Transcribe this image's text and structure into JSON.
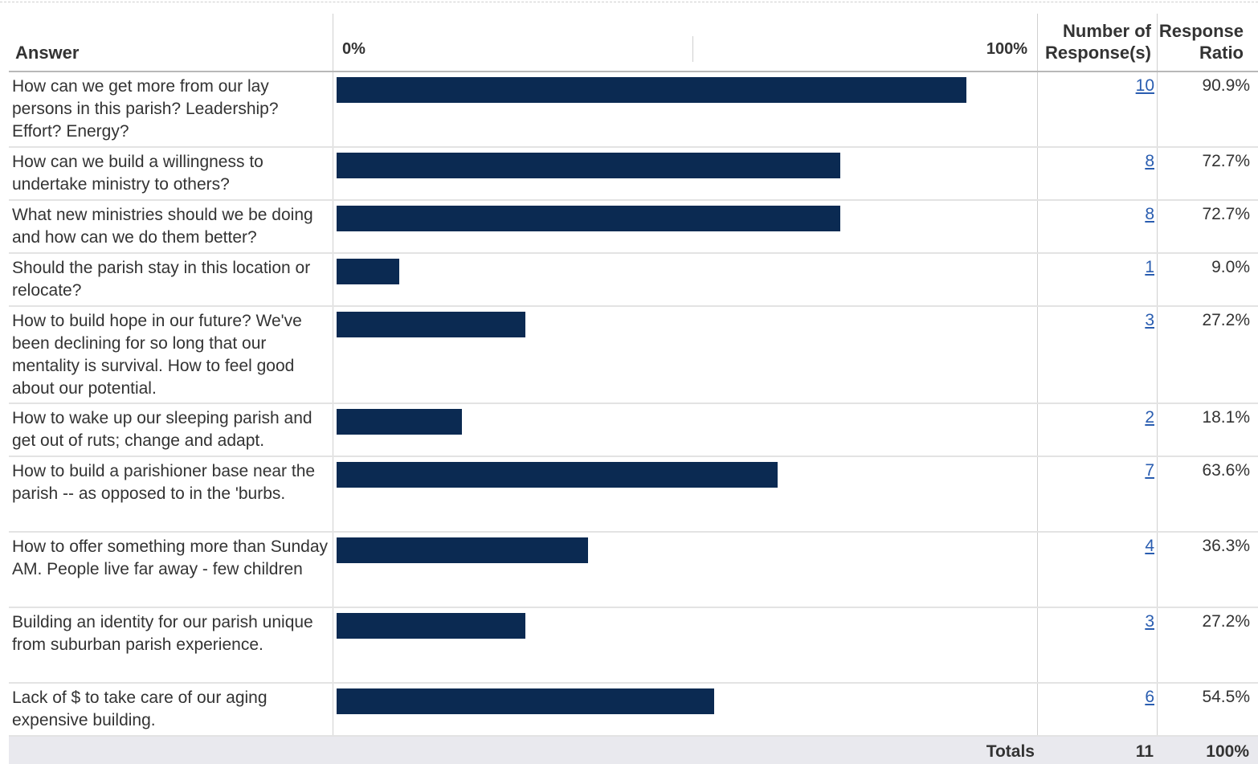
{
  "header": {
    "answer": "Answer",
    "scale_min": "0%",
    "scale_max": "100%",
    "count_line1": "Number of",
    "count_line2": "Response(s)",
    "ratio_line1": "Response",
    "ratio_line2": "Ratio"
  },
  "colors": {
    "bar": "#0b2a52",
    "link": "#2a5db0",
    "totals_bg": "#e9e9ee"
  },
  "chart_data": {
    "type": "bar",
    "orientation": "horizontal",
    "xlim": [
      0,
      100
    ],
    "rows": [
      {
        "answer": "How can we get more from our lay persons in this parish? Leadership? Effort? Energy?",
        "count": "10",
        "ratio": "90.9%",
        "value": 90.9
      },
      {
        "answer": "How can we build a willingness to undertake ministry to others?",
        "count": "8",
        "ratio": "72.7%",
        "value": 72.7
      },
      {
        "answer": "What new ministries should we be doing and how can we do them better?",
        "count": "8",
        "ratio": "72.7%",
        "value": 72.7
      },
      {
        "answer": "Should the parish stay in this location or relocate?",
        "count": "1",
        "ratio": "9.0%",
        "value": 9.0
      },
      {
        "answer": "How to build hope in our future? We've been declining for so long that our mentality is survival. How to feel good about our potential.",
        "count": "3",
        "ratio": "27.2%",
        "value": 27.2
      },
      {
        "answer": "How to wake up our sleeping parish and get out of ruts; change and adapt.",
        "count": "2",
        "ratio": "18.1%",
        "value": 18.1
      },
      {
        "answer": "How to build a parishioner base near the parish -- as opposed to in the 'burbs.",
        "count": "7",
        "ratio": "63.6%",
        "value": 63.6
      },
      {
        "answer": "How to offer something more than Sunday AM. People live far away - few children",
        "count": "4",
        "ratio": "36.3%",
        "value": 36.3
      },
      {
        "answer": "Building an identity for our parish unique from suburban parish experience.",
        "count": "3",
        "ratio": "27.2%",
        "value": 27.2
      },
      {
        "answer": "Lack of $ to take care of our aging expensive building.",
        "count": "6",
        "ratio": "54.5%",
        "value": 54.5
      }
    ]
  },
  "totals": {
    "label": "Totals",
    "count": "11",
    "ratio": "100%"
  }
}
